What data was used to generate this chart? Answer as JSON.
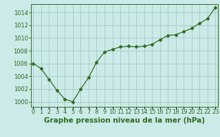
{
  "x": [
    0,
    1,
    2,
    3,
    4,
    5,
    6,
    7,
    8,
    9,
    10,
    11,
    12,
    13,
    14,
    15,
    16,
    17,
    18,
    19,
    20,
    21,
    22,
    23
  ],
  "y": [
    1006.0,
    1005.2,
    1003.5,
    1001.8,
    1000.4,
    1000.0,
    1002.0,
    1003.8,
    1006.2,
    1007.8,
    1008.2,
    1008.6,
    1008.7,
    1008.6,
    1008.7,
    1009.0,
    1009.7,
    1010.4,
    1010.5,
    1011.0,
    1011.5,
    1012.3,
    1013.0,
    1014.8
  ],
  "line_color": "#2d6b1e",
  "marker": "D",
  "marker_size": 2.5,
  "bg_color": "#cceae8",
  "grid_color": "#aacccc",
  "ylabel_values": [
    1000,
    1002,
    1004,
    1006,
    1008,
    1010,
    1012,
    1014
  ],
  "xlabel": "Graphe pression niveau de la mer (hPa)",
  "ylim": [
    999.2,
    1015.3
  ],
  "xlim": [
    -0.3,
    23.3
  ],
  "xlabel_fontsize": 7.5,
  "tick_fontsize": 6.0
}
